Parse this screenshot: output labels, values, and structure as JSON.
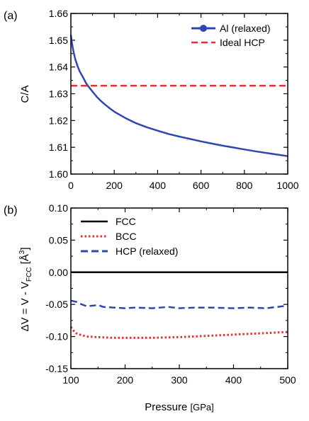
{
  "figure": {
    "xlabel": "Pressure",
    "xlabel_unit": "[GPa]"
  },
  "chart_data": [
    {
      "panel_label": "(a)",
      "type": "line",
      "ylabel": "C/A",
      "xlim": [
        0,
        1000
      ],
      "ylim": [
        1.6,
        1.66
      ],
      "x_ticks": [
        0,
        200,
        400,
        600,
        800,
        1000
      ],
      "x_tick_labels": [
        "0",
        "200",
        "400",
        "600",
        "800",
        "1000"
      ],
      "y_ticks": [
        1.6,
        1.61,
        1.62,
        1.63,
        1.64,
        1.65,
        1.66
      ],
      "y_tick_labels": [
        "1.60",
        "1.61",
        "1.62",
        "1.63",
        "1.64",
        "1.65",
        "1.66"
      ],
      "legend_position": "top-right",
      "series": [
        {
          "name": "Al (relaxed)",
          "color": "#2e46b4",
          "style": "solid-with-marker",
          "x": [
            0,
            5,
            10,
            20,
            30,
            40,
            50,
            60,
            70,
            80,
            90,
            100,
            120,
            140,
            160,
            180,
            200,
            250,
            300,
            350,
            400,
            450,
            500,
            550,
            600,
            650,
            700,
            750,
            800,
            850,
            900,
            950,
            1000
          ],
          "y": [
            1.652,
            1.649,
            1.6465,
            1.643,
            1.6405,
            1.6385,
            1.637,
            1.6355,
            1.634,
            1.6328,
            1.6318,
            1.6308,
            1.6288,
            1.6272,
            1.6258,
            1.6245,
            1.6233,
            1.621,
            1.619,
            1.6175,
            1.6162,
            1.615,
            1.614,
            1.6131,
            1.6122,
            1.6114,
            1.6106,
            1.6099,
            1.6092,
            1.6085,
            1.6079,
            1.6073,
            1.6067
          ]
        },
        {
          "name": "Ideal HCP",
          "color": "#e8302f",
          "style": "dashed",
          "x": [
            0,
            1000
          ],
          "y": [
            1.633,
            1.633
          ]
        }
      ]
    },
    {
      "panel_label": "(b)",
      "type": "line",
      "ylabel": "ΔV = V - VFCC [Å3]",
      "ylabel_parts": {
        "main": "ΔV = V - V",
        "sub": "FCC",
        "unit_open": " [Å",
        "sup": "3",
        "unit_close": "]"
      },
      "xlim": [
        100,
        500
      ],
      "ylim": [
        -0.15,
        0.1
      ],
      "x_ticks": [
        100,
        200,
        300,
        400,
        500
      ],
      "x_tick_labels": [
        "100",
        "200",
        "300",
        "400",
        "500"
      ],
      "y_ticks": [
        -0.15,
        -0.1,
        -0.05,
        0.0,
        0.05,
        0.1
      ],
      "y_tick_labels": [
        "-0.15",
        "-0.10",
        "-0.05",
        "0.00",
        "0.05",
        "0.10"
      ],
      "legend_position": "top-left",
      "series": [
        {
          "name": "FCC",
          "color": "#000000",
          "style": "solid",
          "x": [
            100,
            500
          ],
          "y": [
            0.0,
            0.0
          ]
        },
        {
          "name": "BCC",
          "color": "#e8302f",
          "style": "dotted",
          "x": [
            100,
            105,
            110,
            120,
            130,
            150,
            175,
            200,
            250,
            300,
            350,
            400,
            450,
            500
          ],
          "y": [
            -0.085,
            -0.091,
            -0.095,
            -0.098,
            -0.1,
            -0.101,
            -0.102,
            -0.102,
            -0.102,
            -0.101,
            -0.099,
            -0.097,
            -0.095,
            -0.093
          ]
        },
        {
          "name": "HCP (relaxed)",
          "color": "#2e46b4",
          "style": "dashed",
          "x": [
            100,
            110,
            120,
            130,
            140,
            150,
            160,
            180,
            200,
            220,
            250,
            280,
            300,
            330,
            360,
            400,
            430,
            460,
            480,
            500
          ],
          "y": [
            -0.044,
            -0.046,
            -0.05,
            -0.053,
            -0.052,
            -0.051,
            -0.054,
            -0.055,
            -0.056,
            -0.055,
            -0.056,
            -0.054,
            -0.056,
            -0.055,
            -0.055,
            -0.056,
            -0.055,
            -0.056,
            -0.054,
            -0.052
          ]
        }
      ]
    }
  ]
}
